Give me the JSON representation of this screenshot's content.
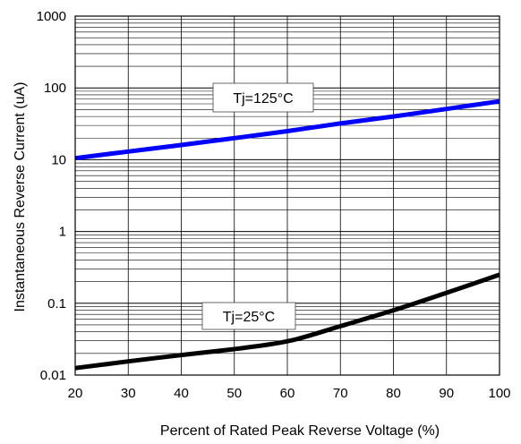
{
  "chart_data": {
    "type": "line",
    "xlabel": "Percent of Rated Peak Reverse Voltage (%)",
    "ylabel": "Instantaneous Reverse Current (uA)",
    "xlim": [
      20,
      100
    ],
    "ylim": [
      0.01,
      1000
    ],
    "y_scale": "log",
    "grid": true,
    "x_ticks": [
      "20",
      "30",
      "40",
      "50",
      "60",
      "70",
      "80",
      "90",
      "100"
    ],
    "y_ticks": [
      "0.01",
      "0.1",
      "1",
      "10",
      "100",
      "1000"
    ],
    "series": [
      {
        "name": "Tj=125°C",
        "color": "#0000ff",
        "x": [
          20,
          30,
          40,
          50,
          60,
          70,
          80,
          90,
          100
        ],
        "y": [
          10.5,
          13,
          16,
          20,
          25,
          32,
          40,
          51,
          65
        ]
      },
      {
        "name": "Tj=25°C",
        "color": "#000000",
        "x": [
          20,
          30,
          40,
          50,
          57,
          62,
          70,
          80,
          90,
          100
        ],
        "y": [
          0.0125,
          0.0155,
          0.019,
          0.023,
          0.027,
          0.032,
          0.048,
          0.08,
          0.14,
          0.25
        ]
      }
    ],
    "annotations": [
      "Tj=125°C",
      "Tj=25°C"
    ]
  }
}
